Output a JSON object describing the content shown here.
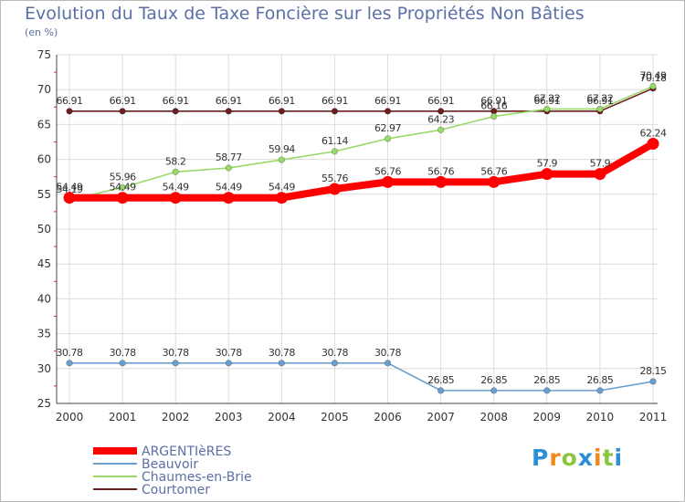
{
  "chart_data": {
    "type": "line",
    "title": "Evolution du Taux de Taxe Foncière sur les Propriétés Non Bâties",
    "subtitle": "(en %)",
    "xlabel": "",
    "ylabel": "",
    "ylim": [
      25,
      75
    ],
    "yticks": [
      "25",
      "30",
      "35",
      "40",
      "45",
      "50",
      "55",
      "60",
      "65",
      "70",
      "75"
    ],
    "categories": [
      "2000",
      "2001",
      "2002",
      "2003",
      "2004",
      "2005",
      "2006",
      "2007",
      "2008",
      "2009",
      "2010",
      "2011"
    ],
    "grid": true,
    "legend_position": "bottom-left",
    "series": [
      {
        "name": "Courtomer",
        "color": "#6b1f1f",
        "values": [
          66.91,
          66.91,
          66.91,
          66.91,
          66.91,
          66.91,
          66.91,
          66.91,
          66.91,
          66.91,
          66.91,
          70.18
        ],
        "labels": [
          "66.91",
          "66.91",
          "66.91",
          "66.91",
          "66.91",
          "66.91",
          "66.91",
          "66.91",
          "66.91",
          "66.91",
          "66.91",
          "70.18"
        ]
      },
      {
        "name": "Chaumes-en-Brie",
        "color": "#99d96a",
        "values": [
          54.19,
          55.96,
          58.2,
          58.77,
          59.94,
          61.14,
          62.97,
          64.23,
          66.16,
          67.22,
          67.22,
          70.49
        ],
        "labels": [
          "54.19",
          "55.96",
          "58.2",
          "58.77",
          "59.94",
          "61.14",
          "62.97",
          "64.23",
          "66.16",
          "67.22",
          "67.22",
          "70.49"
        ]
      },
      {
        "name": "ARGENTIèRES",
        "color": "#ff0000",
        "values": [
          54.49,
          54.49,
          54.49,
          54.49,
          54.49,
          55.76,
          56.76,
          56.76,
          56.76,
          57.9,
          57.9,
          62.24
        ],
        "labels": [
          "54.49",
          "54.49",
          "54.49",
          "54.49",
          "54.49",
          "55.76",
          "56.76",
          "56.76",
          "56.76",
          "57.9",
          "57.9",
          "62.24"
        ]
      },
      {
        "name": "Beauvoir",
        "color": "#6b9fcf",
        "values": [
          30.78,
          30.78,
          30.78,
          30.78,
          30.78,
          30.78,
          30.78,
          26.85,
          26.85,
          26.85,
          26.85,
          28.15
        ],
        "labels": [
          "30.78",
          "30.78",
          "30.78",
          "30.78",
          "30.78",
          "30.78",
          "30.78",
          "26.85",
          "26.85",
          "26.85",
          "26.85",
          "28.15"
        ]
      }
    ],
    "legend": [
      "ARGENTIèRES",
      "Beauvoir",
      "Chaumes-en-Brie",
      "Courtomer"
    ]
  },
  "brand": {
    "letters": [
      "P",
      "r",
      "o",
      "x",
      "i",
      "t",
      "i"
    ],
    "colors": [
      "#2a8fd6",
      "#f28a1a",
      "#8cc63f",
      "#2a8fd6",
      "#f28a1a",
      "#8cc63f",
      "#2a8fd6"
    ]
  }
}
